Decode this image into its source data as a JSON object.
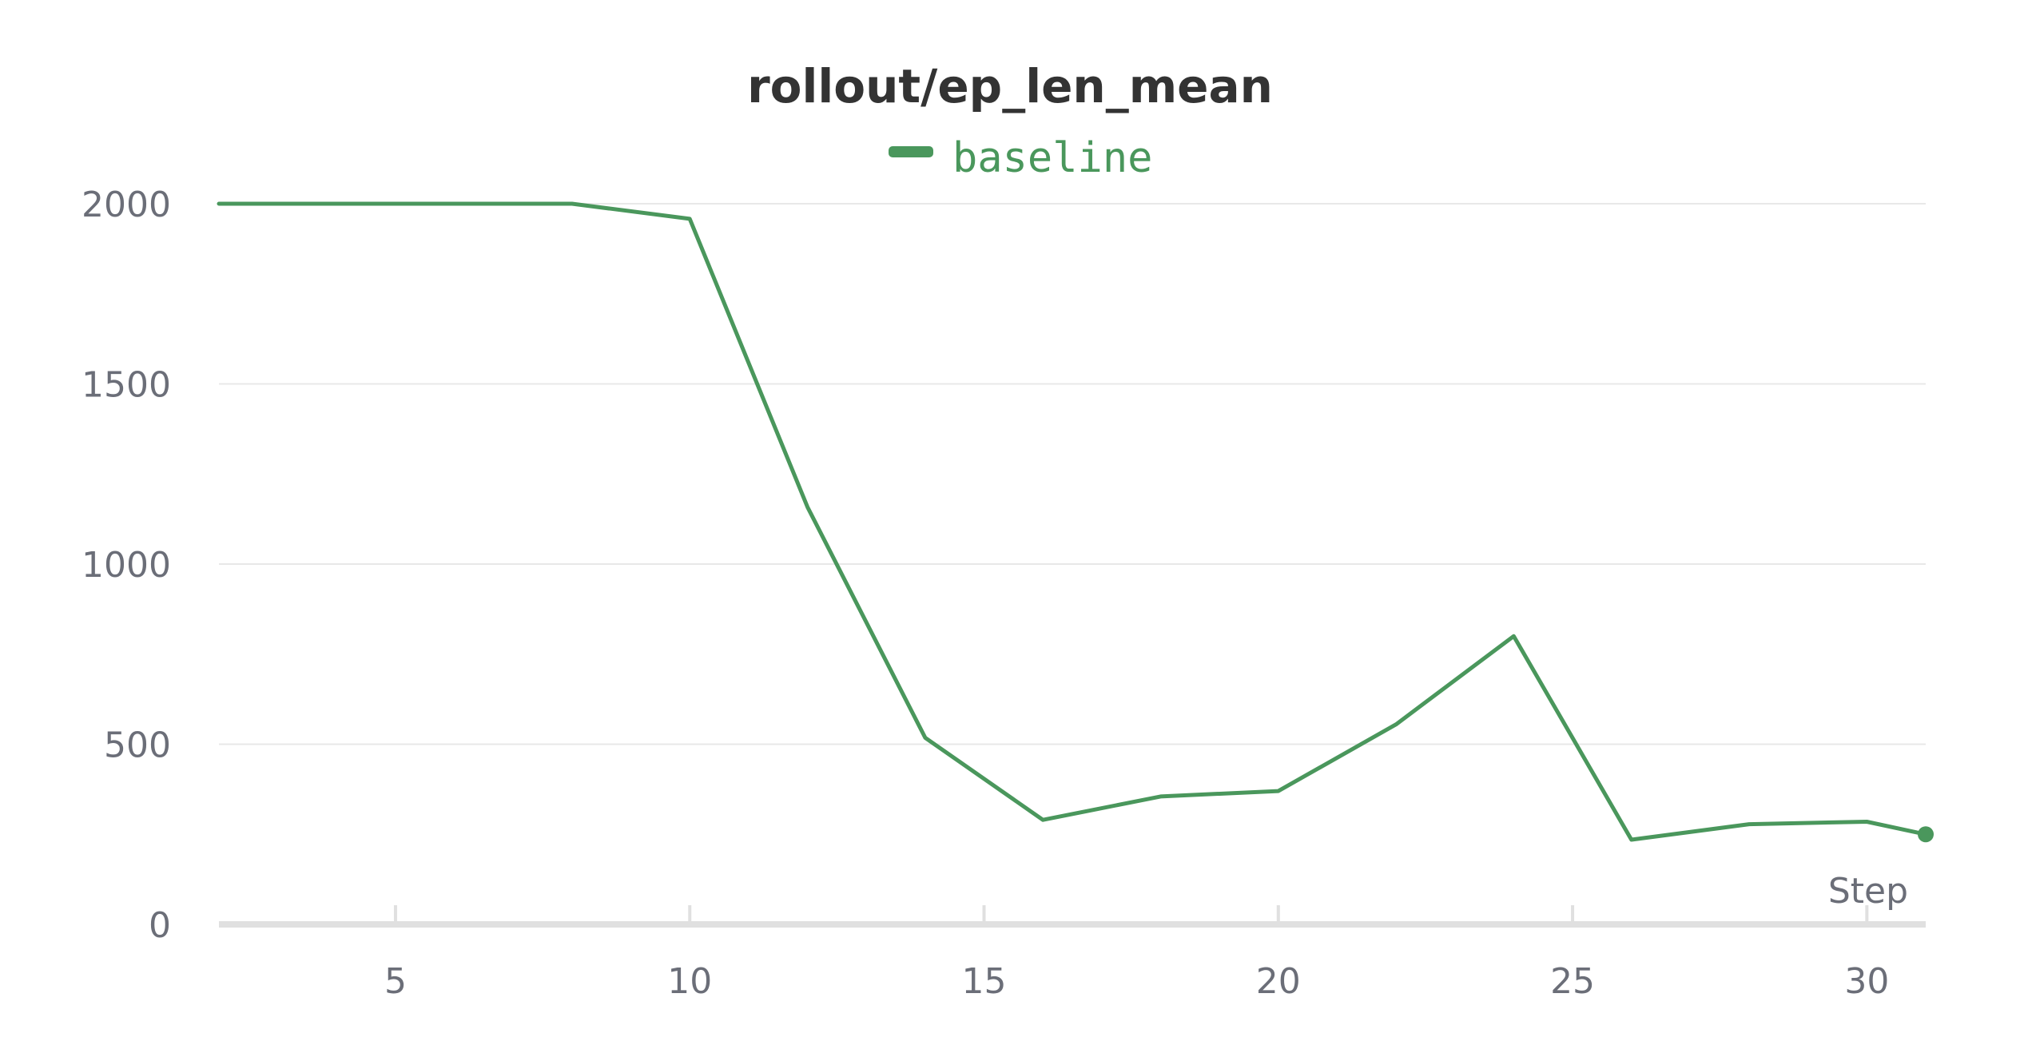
{
  "chart_data": {
    "type": "line",
    "title": "rollout/ep_len_mean",
    "xlabel": "Step",
    "ylabel": "",
    "xlim": [
      2,
      31
    ],
    "ylim": [
      0,
      2000
    ],
    "x_ticks": [
      5,
      10,
      15,
      20,
      25,
      30
    ],
    "y_ticks": [
      0,
      500,
      1000,
      1500,
      2000
    ],
    "grid": true,
    "legend_position": "top-center",
    "series": [
      {
        "name": "baseline",
        "color": "#4a975c",
        "x": [
          2,
          4,
          6,
          8,
          10,
          12,
          14,
          16,
          18,
          20,
          22,
          24,
          26,
          28,
          30,
          31
        ],
        "y": [
          2000,
          2000,
          2000,
          2000,
          1958,
          1158,
          518,
          290,
          355,
          370,
          555,
          800,
          235,
          278,
          285,
          250
        ],
        "end_marker": true
      }
    ]
  }
}
